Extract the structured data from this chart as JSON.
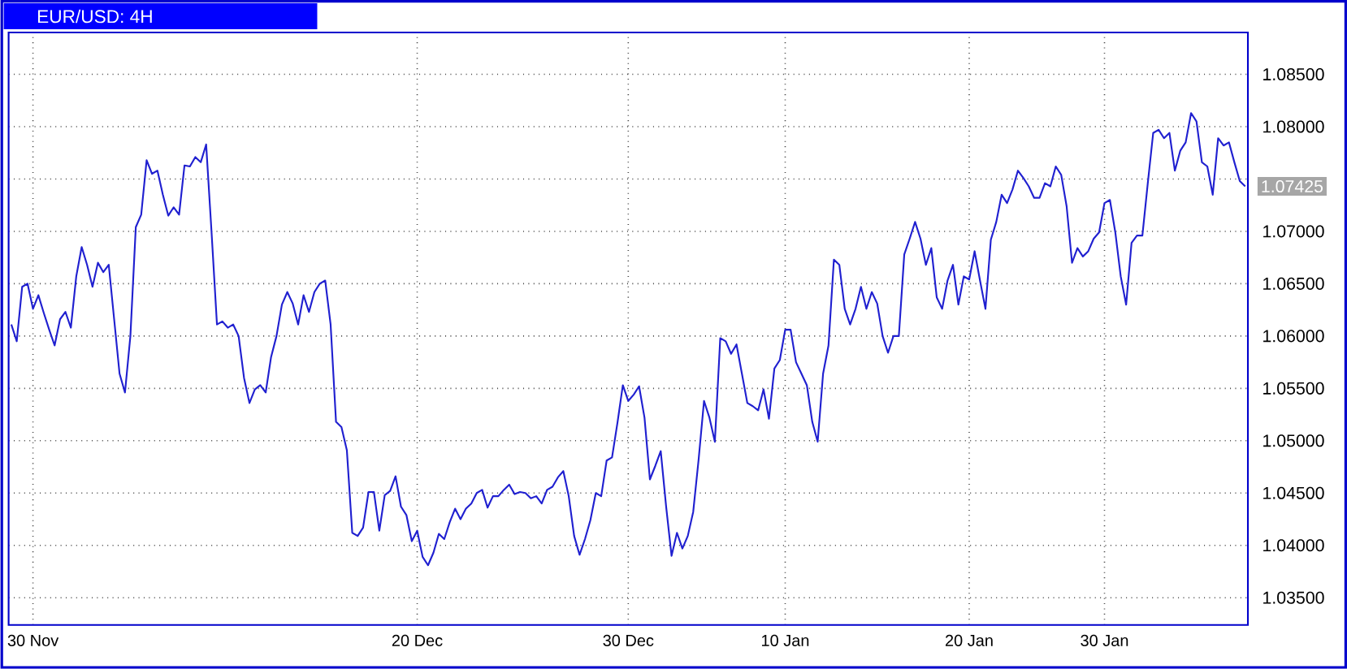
{
  "chart_data": {
    "type": "line",
    "title": "EUR/USD: 4H",
    "categories": [
      null,
      null,
      null,
      null,
      "30 Nov",
      null,
      null,
      null,
      null,
      null,
      null,
      null,
      null,
      null,
      null,
      null,
      null,
      null,
      null,
      null,
      null,
      null,
      null,
      null,
      null,
      null,
      null,
      null,
      null,
      null,
      null,
      null,
      null,
      null,
      null,
      null,
      null,
      null,
      null,
      null,
      null,
      null,
      null,
      null,
      null,
      null,
      null,
      null,
      null,
      null,
      null,
      null,
      null,
      null,
      null,
      null,
      null,
      null,
      null,
      null,
      null,
      null,
      null,
      null,
      null,
      null,
      null,
      null,
      null,
      null,
      null,
      null,
      null,
      null,
      null,
      "20 Dec",
      null,
      null,
      null,
      null,
      null,
      null,
      null,
      null,
      null,
      null,
      null,
      null,
      null,
      null,
      null,
      null,
      null,
      null,
      null,
      null,
      null,
      null,
      null,
      null,
      null,
      null,
      null,
      null,
      null,
      null,
      null,
      null,
      null,
      null,
      null,
      null,
      null,
      null,
      "30 Dec",
      null,
      null,
      null,
      null,
      null,
      null,
      null,
      null,
      null,
      null,
      null,
      null,
      null,
      null,
      null,
      null,
      null,
      null,
      null,
      null,
      null,
      null,
      null,
      null,
      null,
      null,
      null,
      null,
      "10 Jan",
      null,
      null,
      null,
      null,
      null,
      null,
      null,
      null,
      null,
      null,
      null,
      null,
      null,
      null,
      null,
      null,
      null,
      null,
      null,
      null,
      null,
      null,
      null,
      null,
      null,
      null,
      null,
      null,
      null,
      null,
      null,
      null,
      null,
      "20 Jan",
      null,
      null,
      null,
      null,
      null,
      null,
      null,
      null,
      null,
      null,
      null,
      null,
      null,
      null,
      null,
      null,
      null,
      null,
      null,
      null,
      null,
      null,
      null,
      null,
      "30 Jan",
      null,
      null,
      null,
      null,
      null,
      null,
      null,
      null,
      null,
      null,
      null,
      null,
      null,
      null,
      null,
      null,
      null,
      null,
      null,
      null,
      null,
      null,
      null,
      null,
      null,
      null
    ],
    "series": [
      {
        "color": "#2020d0",
        "values": [
          1.0611,
          1.0595,
          1.0647,
          1.065,
          1.0626,
          1.0639,
          1.0622,
          1.0606,
          1.0591,
          1.0616,
          1.0623,
          1.0608,
          1.0657,
          1.0685,
          1.0668,
          1.0647,
          1.067,
          1.0661,
          1.0668,
          1.0616,
          1.0564,
          1.0546,
          1.06,
          1.0704,
          1.0716,
          1.0768,
          1.0755,
          1.0758,
          1.0735,
          1.0715,
          1.0723,
          1.0716,
          1.0763,
          1.0762,
          1.0771,
          1.0766,
          1.0783,
          1.0699,
          1.0611,
          1.0614,
          1.0608,
          1.0611,
          1.06,
          1.056,
          1.0536,
          1.0549,
          1.0553,
          1.0546,
          1.058,
          1.06,
          1.063,
          1.0642,
          1.0631,
          1.0611,
          1.0639,
          1.0623,
          1.0642,
          1.065,
          1.0653,
          1.0611,
          1.0518,
          1.0513,
          1.0491,
          1.0412,
          1.0409,
          1.0417,
          1.0451,
          1.0451,
          1.0414,
          1.0448,
          1.0452,
          1.0466,
          1.0437,
          1.0429,
          1.0404,
          1.0414,
          1.0389,
          1.0381,
          1.0393,
          1.0411,
          1.0406,
          1.0422,
          1.0435,
          1.0425,
          1.0435,
          1.044,
          1.045,
          1.0453,
          1.0436,
          1.0447,
          1.0447,
          1.0453,
          1.0458,
          1.0449,
          1.0451,
          1.045,
          1.0445,
          1.0447,
          1.044,
          1.0453,
          1.0456,
          1.0465,
          1.0471,
          1.0447,
          1.0409,
          1.0391,
          1.0406,
          1.0424,
          1.045,
          1.0447,
          1.0481,
          1.0484,
          1.0517,
          1.0553,
          1.0538,
          1.0544,
          1.0552,
          1.0522,
          1.0463,
          1.0476,
          1.049,
          1.0437,
          1.039,
          1.0412,
          1.0397,
          1.0409,
          1.0432,
          1.0482,
          1.0538,
          1.0522,
          1.0499,
          1.0598,
          1.0595,
          1.0583,
          1.0592,
          1.0564,
          1.0536,
          1.0533,
          1.0529,
          1.0549,
          1.0521,
          1.0569,
          1.0577,
          1.0606,
          1.0606,
          1.0575,
          1.0564,
          1.0553,
          1.0518,
          1.0499,
          1.0564,
          1.0591,
          1.0673,
          1.0668,
          1.0626,
          1.0611,
          1.0626,
          1.0647,
          1.0626,
          1.0642,
          1.0631,
          1.06,
          1.0584,
          1.06,
          1.06,
          1.0678,
          1.0693,
          1.0709,
          1.0693,
          1.0668,
          1.0684,
          1.0637,
          1.0626,
          1.0653,
          1.0668,
          1.063,
          1.0657,
          1.0654,
          1.0681,
          1.0653,
          1.0626,
          1.0692,
          1.0709,
          1.0735,
          1.0727,
          1.074,
          1.0758,
          1.0751,
          1.0743,
          1.0732,
          1.0732,
          1.0746,
          1.0743,
          1.0762,
          1.0754,
          1.0724,
          1.067,
          1.0684,
          1.0676,
          1.0681,
          1.0693,
          1.0699,
          1.0727,
          1.073,
          1.0699,
          1.0657,
          1.063,
          1.0689,
          1.0696,
          1.0696,
          1.0746,
          1.0794,
          1.0797,
          1.0789,
          1.0794,
          1.0758,
          1.0777,
          1.0785,
          1.0813,
          1.0805,
          1.0766,
          1.0762,
          1.0735,
          1.0789,
          1.0782,
          1.0785,
          1.0766,
          1.0748,
          1.0743
        ]
      }
    ],
    "ylim": [
      1.0324,
      1.089
    ],
    "yticks": [
      {
        "value": 1.035,
        "label": "1.03500"
      },
      {
        "value": 1.04,
        "label": "1.04000"
      },
      {
        "value": 1.045,
        "label": "1.04500"
      },
      {
        "value": 1.05,
        "label": "1.05000"
      },
      {
        "value": 1.055,
        "label": "1.05500"
      },
      {
        "value": 1.06,
        "label": "1.06000"
      },
      {
        "value": 1.065,
        "label": "1.06500"
      },
      {
        "value": 1.07,
        "label": "1.07000"
      },
      {
        "value": 1.075,
        "label": null
      },
      {
        "value": 1.08,
        "label": "1.08000"
      },
      {
        "value": 1.085,
        "label": "1.08500"
      }
    ],
    "annotations": [
      "1.07425"
    ],
    "grid": true,
    "marker": "none",
    "line_style": "solid"
  }
}
